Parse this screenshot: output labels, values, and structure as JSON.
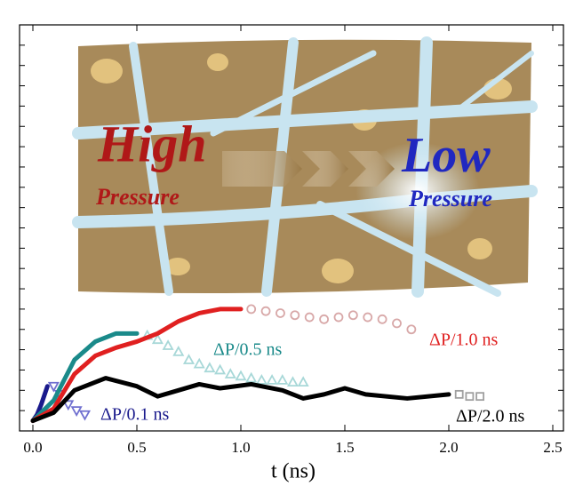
{
  "chart_data": {
    "type": "line",
    "x_label": "t (ns)",
    "xlim": [
      0,
      2.5
    ],
    "xticks": [
      {
        "value": 0,
        "label": "0.0"
      },
      {
        "value": 0.5,
        "label": "0.5"
      },
      {
        "value": 1,
        "label": "1.0"
      },
      {
        "value": 1.5,
        "label": "1.5"
      },
      {
        "value": 2,
        "label": "2.0"
      },
      {
        "value": 2.5,
        "label": "2.5"
      }
    ],
    "ylim": [
      0,
      20
    ],
    "yticks": [
      0,
      1,
      2,
      3,
      4,
      5,
      6,
      7,
      8,
      9,
      10,
      11,
      12,
      13,
      14,
      15,
      16,
      17,
      18,
      19,
      20
    ],
    "inset_texts": {
      "high": "High",
      "high_pressure": "Pressure",
      "low": "Low",
      "low_pressure": "Pressure"
    },
    "series": [
      {
        "name": "ΔP/0.1 ns",
        "color": "#1a1a8c",
        "marker": "line",
        "x": [
          0,
          0.02,
          0.04,
          0.06,
          0.07
        ],
        "values": [
          0.5,
          0.8,
          1.3,
          1.9,
          2.2
        ]
      },
      {
        "color": "#7070d0",
        "marker": "triangle-down",
        "x": [
          0.1,
          0.13,
          0.17,
          0.21,
          0.25
        ],
        "values": [
          2.2,
          1.8,
          1.3,
          1.0,
          0.8
        ]
      },
      {
        "name": "ΔP/0.5 ns",
        "color": "#1a8a8a",
        "marker": "line",
        "x": [
          0,
          0.1,
          0.2,
          0.3,
          0.4,
          0.5
        ],
        "values": [
          0.5,
          1.5,
          3.5,
          4.4,
          4.8,
          4.8
        ]
      },
      {
        "color": "#a8d8d8",
        "marker": "triangle-up",
        "x": [
          0.55,
          0.6,
          0.65,
          0.7,
          0.75,
          0.8,
          0.85,
          0.9,
          0.95,
          1.0,
          1.05,
          1.1,
          1.15,
          1.2,
          1.25,
          1.3
        ],
        "values": [
          4.7,
          4.5,
          4.2,
          3.9,
          3.5,
          3.3,
          3.1,
          3.0,
          2.8,
          2.7,
          2.6,
          2.5,
          2.5,
          2.5,
          2.4,
          2.4
        ]
      },
      {
        "name": "ΔP/1.0 ns",
        "color": "#e02020",
        "marker": "line",
        "x": [
          0,
          0.1,
          0.2,
          0.3,
          0.4,
          0.5,
          0.6,
          0.7,
          0.8,
          0.9,
          1.0
        ],
        "values": [
          0.5,
          1.1,
          2.8,
          3.7,
          4.1,
          4.4,
          4.8,
          5.4,
          5.8,
          6.0,
          6.0
        ]
      },
      {
        "color": "#d8a8a8",
        "marker": "circle",
        "x": [
          1.05,
          1.12,
          1.19,
          1.26,
          1.33,
          1.4,
          1.47,
          1.54,
          1.61,
          1.68,
          1.75,
          1.82
        ],
        "values": [
          6.0,
          5.9,
          5.8,
          5.7,
          5.6,
          5.5,
          5.6,
          5.7,
          5.6,
          5.5,
          5.3,
          5.0
        ]
      },
      {
        "name": "ΔP/2.0 ns",
        "color": "#000000",
        "marker": "line",
        "x": [
          0,
          0.1,
          0.2,
          0.35,
          0.5,
          0.6,
          0.7,
          0.8,
          0.9,
          1.05,
          1.2,
          1.3,
          1.4,
          1.5,
          1.6,
          1.8,
          2.0
        ],
        "values": [
          0.5,
          0.9,
          2.0,
          2.6,
          2.2,
          1.7,
          2.0,
          2.3,
          2.1,
          2.3,
          2.0,
          1.6,
          1.8,
          2.1,
          1.8,
          1.6,
          1.8
        ]
      },
      {
        "color": "#a0a0a0",
        "marker": "square",
        "x": [
          2.05,
          2.1,
          2.15
        ],
        "values": [
          1.8,
          1.7,
          1.7
        ]
      }
    ]
  }
}
